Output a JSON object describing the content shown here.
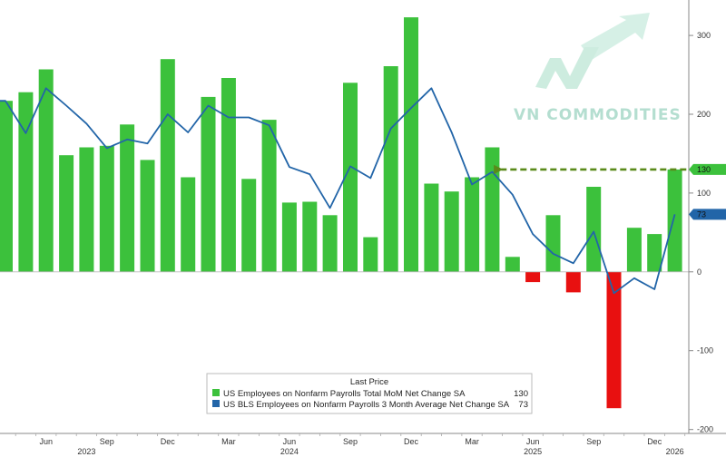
{
  "watermark": {
    "text": "VN COMMODITIES"
  },
  "legend": {
    "title": "Last Price",
    "items": [
      {
        "label": "US Employees on Nonfarm Payrolls Total MoM Net Change SA",
        "value": "130",
        "color": "#3cc13c"
      },
      {
        "label": "US BLS Employees on Nonfarm Payrolls 3 Month Average Net Change SA",
        "value": "73",
        "color": "#2265a8"
      }
    ]
  },
  "badges": [
    {
      "series": "mom",
      "text": "130",
      "color": "#3cc13c",
      "textColor": "#111111"
    },
    {
      "series": "avg",
      "text": "73",
      "color": "#2265a8",
      "textColor": "#ffffff"
    }
  ],
  "chart_data": {
    "type": "bar",
    "ylim": [
      -205,
      345
    ],
    "yticks": [
      -200,
      -100,
      0,
      100,
      200,
      300
    ],
    "grid": false,
    "legend_position": "bottom-center",
    "annotation": {
      "type": "dashed-arrow",
      "color": "#5a8a1a",
      "from_index": 38,
      "to_index": 24,
      "y": 130
    },
    "x_month_labels": [
      {
        "index": 2,
        "text": "Jun"
      },
      {
        "index": 5,
        "text": "Sep"
      },
      {
        "index": 8,
        "text": "Dec"
      },
      {
        "index": 11,
        "text": "Mar"
      },
      {
        "index": 14,
        "text": "Jun"
      },
      {
        "index": 17,
        "text": "Sep"
      },
      {
        "index": 20,
        "text": "Dec"
      },
      {
        "index": 23,
        "text": "Mar"
      },
      {
        "index": 26,
        "text": "Jun"
      },
      {
        "index": 29,
        "text": "Sep"
      },
      {
        "index": 32,
        "text": "Dec"
      }
    ],
    "x_year_labels": [
      {
        "index": 4,
        "text": "2023"
      },
      {
        "index": 14,
        "text": "2024"
      },
      {
        "index": 26,
        "text": "2025"
      },
      {
        "index": 33,
        "text": "2026"
      }
    ],
    "series": [
      {
        "key": "mom",
        "label": "US Employees on Nonfarm Payrolls Total MoM Net Change SA",
        "type": "bar",
        "color": "#3cc13c",
        "negative_color": "#e81010",
        "values": [
          217,
          228,
          257,
          148,
          158,
          160,
          187,
          142,
          270,
          120,
          222,
          246,
          118,
          193,
          88,
          89,
          72,
          240,
          44,
          261,
          323,
          112,
          102,
          120,
          158,
          19,
          -13,
          72,
          -26,
          108,
          -173,
          56,
          48,
          130
        ]
      },
      {
        "key": "avg",
        "label": "US BLS Employees on Nonfarm Payrolls 3 Month Average Net Change SA",
        "type": "line",
        "color": "#2265a8",
        "values": [
          217,
          176,
          233,
          211,
          188,
          157,
          168,
          163,
          200,
          177,
          211,
          196,
          196,
          186,
          133,
          124,
          81,
          134,
          119,
          182,
          208,
          233,
          177,
          111,
          127,
          98,
          48,
          23,
          11,
          51,
          -27,
          -8,
          -22,
          73
        ]
      }
    ]
  }
}
